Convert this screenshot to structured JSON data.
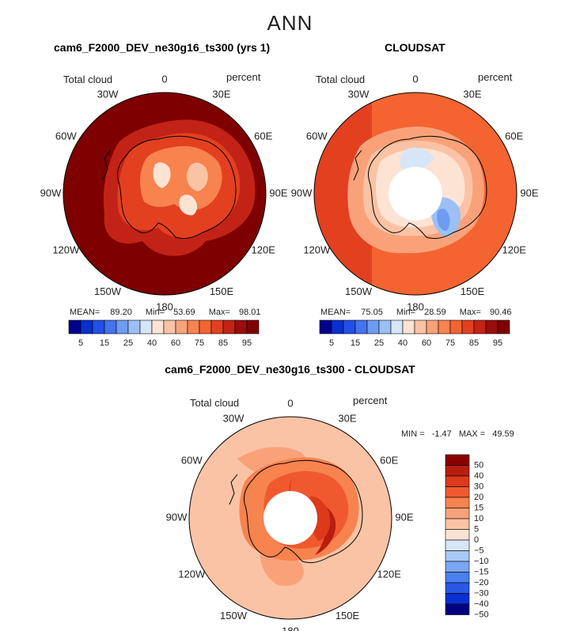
{
  "main_title": "ANN",
  "colors": {
    "abs_scale": [
      "#00008b",
      "#0a2fd0",
      "#2250e8",
      "#4474ee",
      "#6e9cf2",
      "#9cc0f5",
      "#d6e6f7",
      "#fde3d3",
      "#fbc3a5",
      "#f9a27a",
      "#f7834f",
      "#f36431",
      "#e34020",
      "#c32316",
      "#990d0a",
      "#7e0000"
    ],
    "diff_scale": [
      "#000080",
      "#0a2fd0",
      "#2a58e6",
      "#4a7ff0",
      "#7aa6f3",
      "#a8c8f6",
      "#d6e6f7",
      "#fde3d3",
      "#fbc3a5",
      "#f9a27a",
      "#f7834f",
      "#f0592e",
      "#dc3a1b",
      "#b81d10",
      "#8b0000"
    ]
  },
  "chart_data": [
    {
      "type": "polar-contour",
      "panel": "model",
      "title": "cam6_F2000_DEV_ne30g16_ts300 (yrs 1)",
      "variable": "Total cloud",
      "units": "percent",
      "lon_labels": [
        "0",
        "30E",
        "60E",
        "90E",
        "120E",
        "150E",
        "180",
        "150W",
        "120W",
        "90W",
        "60W",
        "30W"
      ],
      "stats": {
        "mean_label": "MEAN=",
        "mean": "89.20",
        "min_label": "Min=",
        "min": "53.69",
        "max_label": "Max=",
        "max": "98.01"
      },
      "colorbar_ticks": [
        "5",
        "15",
        "25",
        "40",
        "60",
        "75",
        "85",
        "95"
      ]
    },
    {
      "type": "polar-contour",
      "panel": "obs",
      "title": "CLOUDSAT",
      "variable": "Total cloud",
      "units": "percent",
      "lon_labels": [
        "0",
        "30E",
        "60E",
        "90E",
        "120E",
        "150E",
        "180",
        "150W",
        "120W",
        "90W",
        "60W",
        "30W"
      ],
      "stats": {
        "mean_label": "MEAN=",
        "mean": "75.05",
        "min_label": "Min=",
        "min": "28.59",
        "max_label": "Max=",
        "max": "90.46"
      },
      "colorbar_ticks": [
        "5",
        "15",
        "25",
        "40",
        "60",
        "75",
        "85",
        "95"
      ]
    },
    {
      "type": "polar-contour",
      "panel": "difference",
      "title": "cam6_F2000_DEV_ne30g16_ts300 - CLOUDSAT",
      "variable": "Total cloud",
      "units": "percent",
      "lon_labels": [
        "0",
        "30E",
        "60E",
        "90E",
        "120E",
        "150E",
        "180",
        "150W",
        "120W",
        "90W",
        "60W",
        "30W"
      ],
      "stats_text": {
        "min_label": "MIN =",
        "min": "-1.47",
        "max_label": "MAX =",
        "max": "49.59"
      },
      "colorbar_ticks": [
        "50",
        "40",
        "30",
        "20",
        "15",
        "10",
        "5",
        "0",
        "−5",
        "−10",
        "−15",
        "−20",
        "−30",
        "−40",
        "−50"
      ]
    }
  ]
}
